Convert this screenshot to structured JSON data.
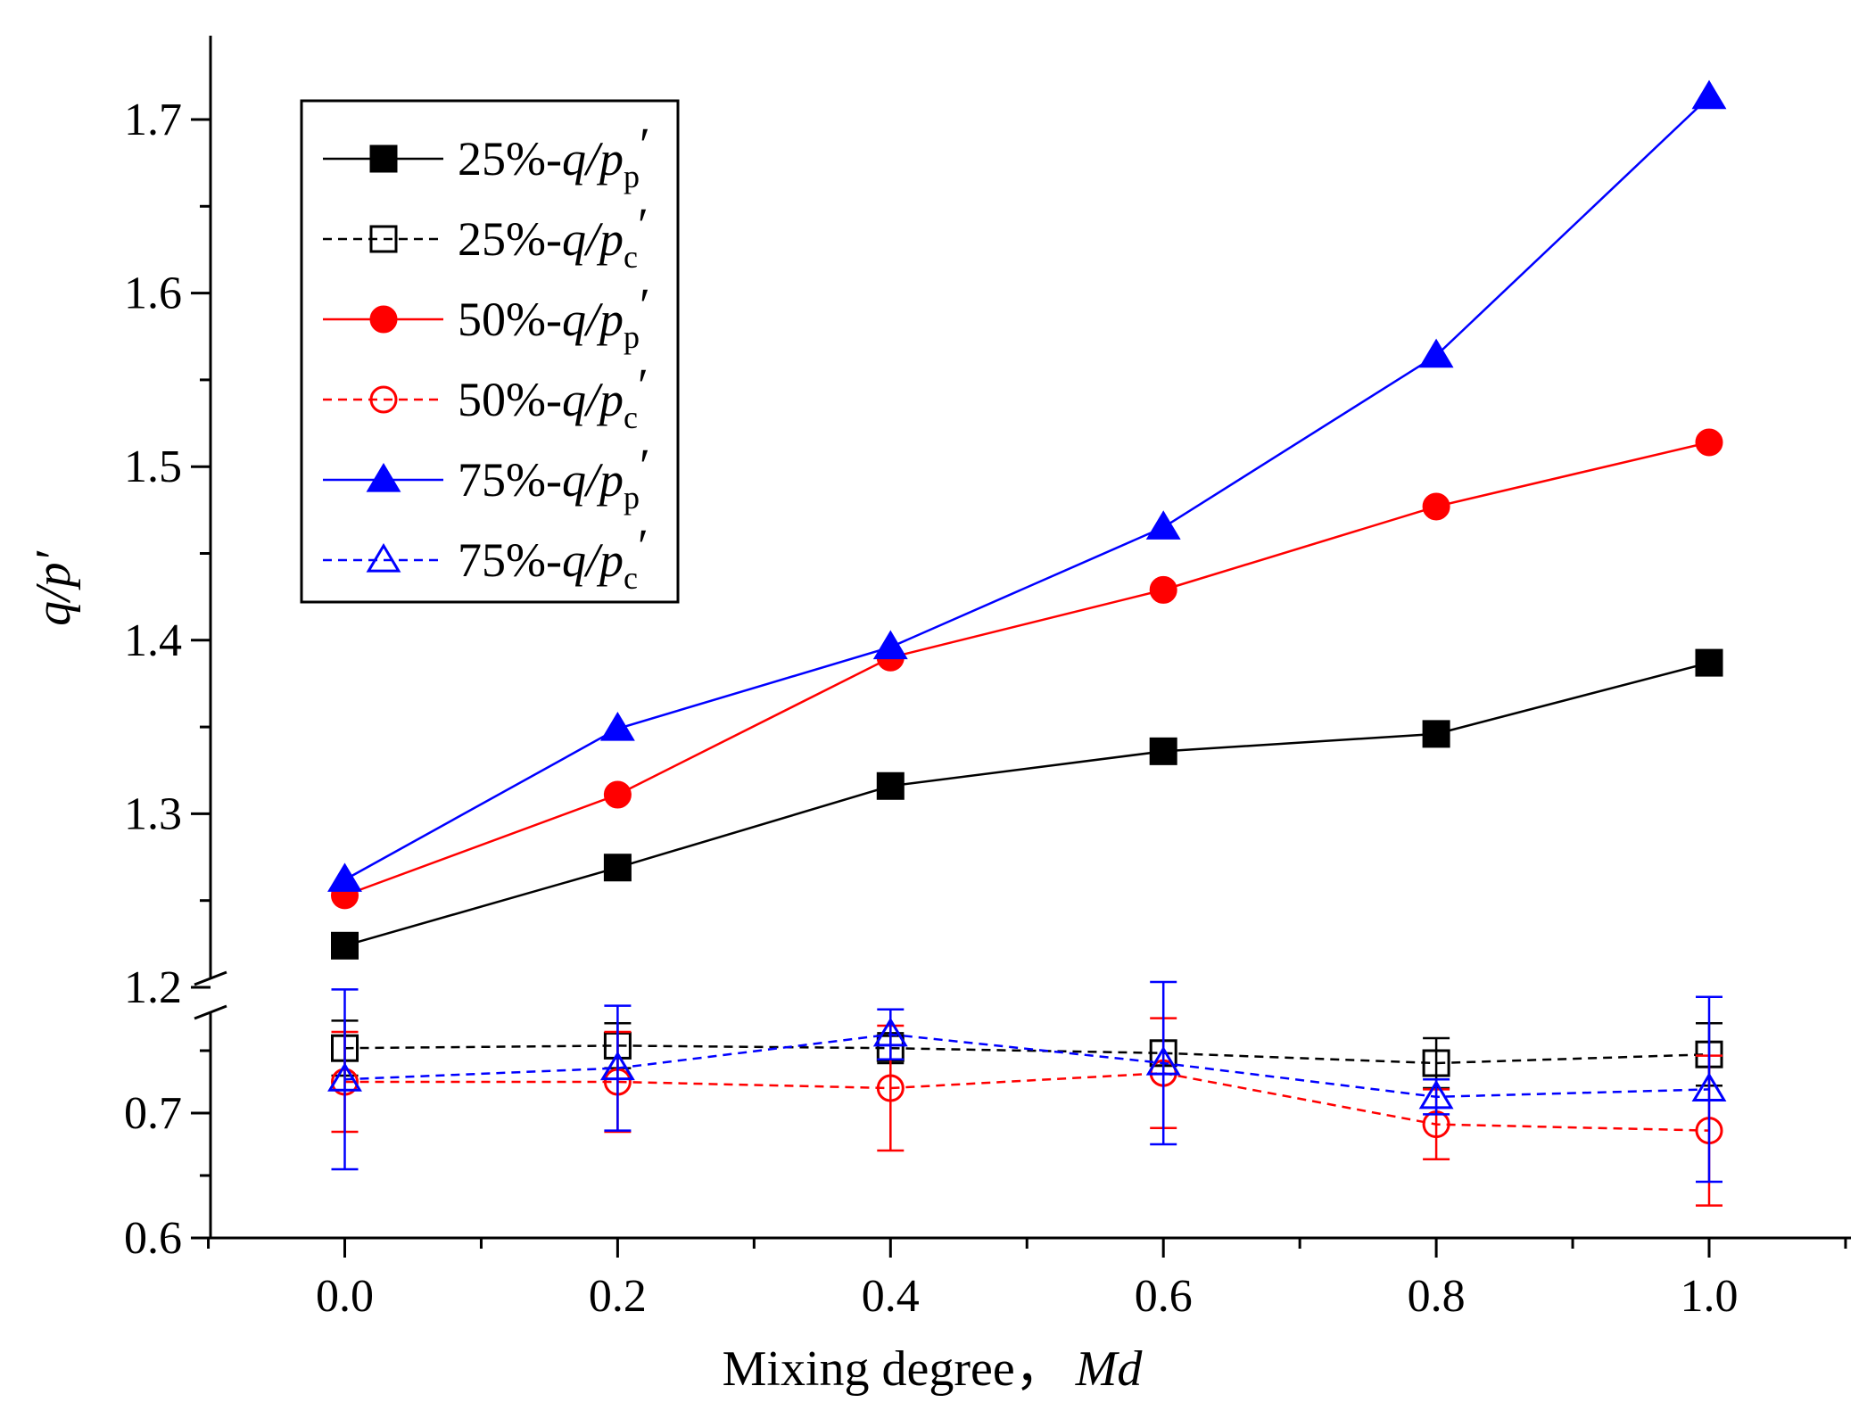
{
  "chart_data": {
    "type": "line",
    "xlabel": "Mixing degree，",
    "xlabel_var": "Md",
    "ylabel": "q/p′",
    "x": [
      0.0,
      0.2,
      0.4,
      0.6,
      0.8,
      1.0
    ],
    "x_ticks": [
      "0.0",
      "0.2",
      "0.4",
      "0.6",
      "0.8",
      "1.0"
    ],
    "xlim": [
      -0.1,
      1.1
    ],
    "y_axis_break": true,
    "y_segments": [
      {
        "range": [
          0.6,
          0.8
        ],
        "ticks": [
          "0.6",
          "0.7"
        ]
      },
      {
        "range": [
          1.2,
          1.75
        ],
        "ticks": [
          "1.2",
          "1.3",
          "1.4",
          "1.5",
          "1.6",
          "1.7"
        ]
      }
    ],
    "legend_position": "top-left",
    "grid": false,
    "series": [
      {
        "name": "25%-q/pp′",
        "label_main": "25%-q/p",
        "label_sub": "p",
        "color": "#000000",
        "marker": "square",
        "filled": true,
        "dashed": false,
        "values": [
          1.224,
          1.269,
          1.316,
          1.336,
          1.346,
          1.387
        ]
      },
      {
        "name": "25%-q/pc′",
        "label_main": "25%-q/p",
        "label_sub": "c",
        "color": "#000000",
        "marker": "square",
        "filled": false,
        "dashed": true,
        "values": [
          0.752,
          0.754,
          0.752,
          0.748,
          0.74,
          0.747
        ],
        "errors": [
          0.022,
          0.018,
          0.012,
          0.01,
          0.02,
          0.025
        ]
      },
      {
        "name": "50%-q/pp′",
        "label_main": "50%-q/p",
        "label_sub": "p",
        "color": "#ff0000",
        "marker": "circle",
        "filled": true,
        "dashed": false,
        "values": [
          1.253,
          1.311,
          1.39,
          1.429,
          1.477,
          1.514
        ]
      },
      {
        "name": "50%-q/pc′",
        "label_main": "50%-q/p",
        "label_sub": "c",
        "color": "#ff0000",
        "marker": "circle",
        "filled": false,
        "dashed": true,
        "values": [
          0.725,
          0.725,
          0.72,
          0.732,
          0.691,
          0.686
        ],
        "errors": [
          0.04,
          0.04,
          0.05,
          0.044,
          0.028,
          0.06
        ]
      },
      {
        "name": "75%-q/pp′",
        "label_main": "75%-q/p",
        "label_sub": "p",
        "color": "#0000ff",
        "marker": "triangle",
        "filled": true,
        "dashed": false,
        "values": [
          1.262,
          1.349,
          1.396,
          1.465,
          1.564,
          1.713
        ]
      },
      {
        "name": "75%-q/pc′",
        "label_main": "75%-q/p",
        "label_sub": "c",
        "color": "#0000ff",
        "marker": "triangle",
        "filled": false,
        "dashed": true,
        "values": [
          0.727,
          0.736,
          0.763,
          0.74,
          0.713,
          0.719
        ],
        "errors": [
          0.072,
          0.05,
          0.02,
          0.065,
          0.014,
          0.074
        ]
      }
    ]
  }
}
